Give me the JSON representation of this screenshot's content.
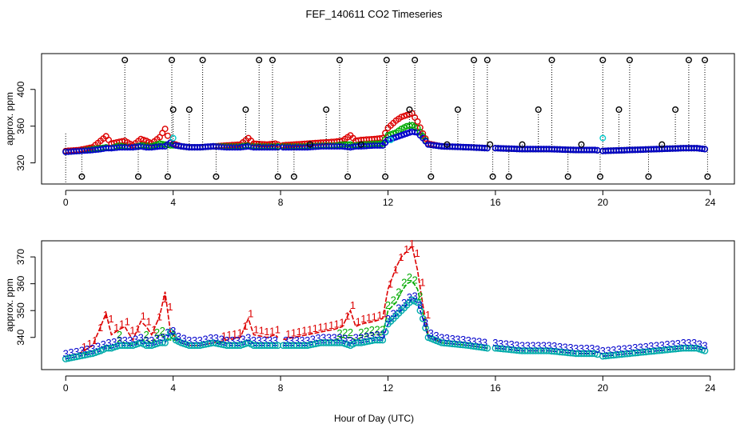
{
  "chart_data": [
    {
      "type": "scatter",
      "title": "FEF_140611  CO2 Timeseries",
      "xlabel": "",
      "ylabel": "approx. ppm",
      "xlim": [
        -0.9,
        24.9
      ],
      "ylim": [
        297,
        439
      ],
      "xticks": [
        0,
        4,
        8,
        12,
        16,
        20,
        24
      ],
      "yticks": [
        320,
        360,
        400
      ],
      "grid": false,
      "series": [
        {
          "name": "black",
          "color": "#000000",
          "marker": "circle",
          "x": [
            0.6,
            2.2,
            2.7,
            3.8,
            3.95,
            4.0,
            4.6,
            5.1,
            5.6,
            6.7,
            7.2,
            7.7,
            7.9,
            8.5,
            9.1,
            9.7,
            10.2,
            10.5,
            11.0,
            11.9,
            11.95,
            12.8,
            13.0,
            13.6,
            14.2,
            14.6,
            15.2,
            15.7,
            15.8,
            15.9,
            16.5,
            17.0,
            17.6,
            18.1,
            18.7,
            19.2,
            19.9,
            20.0,
            20.6,
            21.0,
            21.7,
            22.2,
            22.7,
            23.2,
            23.8,
            23.9
          ],
          "y": [
            305,
            432,
            305,
            305,
            432,
            378,
            378,
            432,
            305,
            378,
            432,
            432,
            305,
            305,
            340,
            378,
            432,
            305,
            340,
            305,
            432,
            378,
            432,
            305,
            340,
            378,
            432,
            432,
            340,
            305,
            305,
            340,
            378,
            432,
            305,
            340,
            305,
            432,
            378,
            432,
            305,
            340,
            378,
            432,
            432,
            305
          ]
        },
        {
          "name": "cyan",
          "color": "#00cccc",
          "marker": "circle",
          "x": [
            4.0,
            12.1,
            20.0
          ],
          "y": [
            347,
            345,
            347
          ]
        },
        {
          "name": "red",
          "color": "#dd0000",
          "marker": "circle",
          "note": "scattered points, y ≈ bottom panel series 1"
        },
        {
          "name": "green",
          "color": "#00aa00",
          "marker": "circle",
          "note": "scattered points, y ≈ bottom panel series 2"
        },
        {
          "name": "blue",
          "color": "#0000cc",
          "marker": "circle",
          "note": "scattered points, y ≈ bottom panel series 3"
        }
      ]
    },
    {
      "type": "line",
      "title": "",
      "xlabel": "Hour of Day (UTC)",
      "ylabel": "approx. ppm",
      "xlim": [
        -0.9,
        24.9
      ],
      "ylim": [
        328,
        376
      ],
      "xticks": [
        0,
        4,
        8,
        12,
        16,
        20,
        24
      ],
      "yticks": [
        340,
        350,
        360,
        370
      ],
      "grid": false,
      "x": [
        0.0,
        0.5,
        1.0,
        1.3,
        1.5,
        1.7,
        2.0,
        2.2,
        2.5,
        2.8,
        3.0,
        3.2,
        3.5,
        3.7,
        3.9,
        4.1,
        4.3,
        4.6,
        5.0,
        5.5,
        6.0,
        6.5,
        6.8,
        7.0,
        7.5,
        7.8,
        8.0,
        8.5,
        9.0,
        9.5,
        10.0,
        10.3,
        10.6,
        10.8,
        11.0,
        11.5,
        11.8,
        12.0,
        12.3,
        12.5,
        12.7,
        12.9,
        13.1,
        13.3,
        13.5,
        14.0,
        15.0,
        15.7,
        16.0,
        17.0,
        18.0,
        19.0,
        19.7,
        20.0,
        21.0,
        22.0,
        23.0,
        23.5,
        23.8
      ],
      "series": [
        {
          "name": "1",
          "color": "#dd0000",
          "values": [
            333,
            334,
            337,
            344,
            349,
            341,
            343,
            344,
            339,
            346,
            344,
            341,
            348,
            357,
            342,
            340,
            338,
            337,
            337,
            338,
            339,
            340,
            347,
            341,
            340,
            341,
            339,
            340,
            341,
            342,
            343,
            344,
            350,
            344,
            345,
            346,
            347,
            358,
            366,
            370,
            372,
            374,
            365,
            352,
            341,
            338,
            337,
            336,
            336,
            335,
            335,
            334,
            334,
            333,
            334,
            335,
            336,
            336,
            335
          ]
        },
        {
          "name": "2",
          "color": "#00aa00",
          "values": [
            332,
            333,
            335,
            336,
            337,
            336,
            339,
            338,
            337,
            339,
            339,
            338,
            341,
            340,
            339,
            339,
            338,
            337,
            337,
            338,
            338,
            338,
            339,
            338,
            338,
            338,
            338,
            338,
            338,
            339,
            339,
            340,
            340,
            339,
            340,
            341,
            341,
            350,
            353,
            357,
            360,
            361,
            358,
            349,
            340,
            338,
            337,
            336,
            336,
            335,
            335,
            334,
            334,
            333,
            334,
            335,
            336,
            336,
            335
          ]
        },
        {
          "name": "3",
          "color": "#0000cc",
          "values": [
            332,
            333,
            334,
            335,
            336,
            336,
            337,
            337,
            337,
            338,
            337,
            337,
            338,
            338,
            342,
            339,
            338,
            337,
            337,
            338,
            337,
            337,
            338,
            337,
            337,
            337,
            337,
            337,
            337,
            338,
            338,
            338,
            337,
            338,
            338,
            339,
            339,
            345,
            348,
            350,
            352,
            354,
            353,
            347,
            340,
            338,
            337,
            336,
            336,
            335,
            335,
            334,
            334,
            333,
            334,
            335,
            336,
            336,
            335
          ]
        }
      ]
    }
  ]
}
